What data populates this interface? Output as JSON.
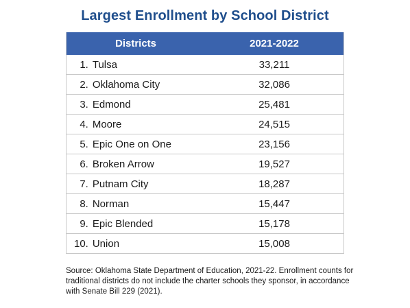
{
  "title": "Largest Enrollment by School District",
  "table": {
    "headers": {
      "district": "Districts",
      "year": "2021-2022"
    },
    "rows": [
      {
        "rank": "1.",
        "district": "Tulsa",
        "enrollment": "33,211"
      },
      {
        "rank": "2.",
        "district": "Oklahoma City",
        "enrollment": "32,086"
      },
      {
        "rank": "3.",
        "district": "Edmond",
        "enrollment": "25,481"
      },
      {
        "rank": "4.",
        "district": "Moore",
        "enrollment": "24,515"
      },
      {
        "rank": "5.",
        "district": "Epic One on One",
        "enrollment": "23,156"
      },
      {
        "rank": "6.",
        "district": "Broken Arrow",
        "enrollment": "19,527"
      },
      {
        "rank": "7.",
        "district": "Putnam City",
        "enrollment": "18,287"
      },
      {
        "rank": "8.",
        "district": "Norman",
        "enrollment": "15,447"
      },
      {
        "rank": "9.",
        "district": "Epic Blended",
        "enrollment": "15,178"
      },
      {
        "rank": "10.",
        "district": "Union",
        "enrollment": "15,008"
      }
    ]
  },
  "source": "Source: Oklahoma State Department of Education, 2021-22. Enrollment counts for traditional districts do not include the charter schools they sponsor, in accordance with Senate Bill 229 (2021).",
  "colors": {
    "title": "#1f4e8c",
    "header_bg": "#3a63ad",
    "header_text": "#ffffff",
    "border": "#c8c8c8"
  }
}
